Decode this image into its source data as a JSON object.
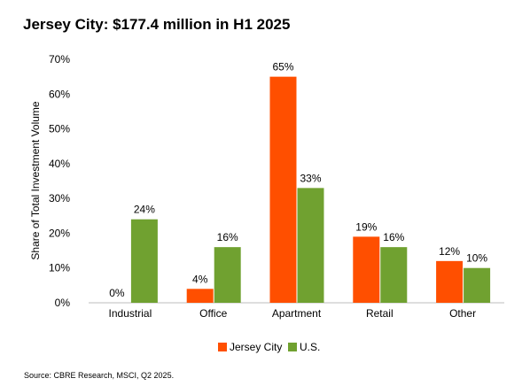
{
  "chart_title": "Jersey City: $177.4 million in H1 2025",
  "source": "Source: CBRE Research, MSCI, Q2 2025.",
  "chart_data": {
    "type": "bar",
    "title": "Jersey City: $177.4 million in H1 2025",
    "xlabel": "",
    "ylabel": "Share of Total Investment Volume",
    "ylim": [
      0,
      70
    ],
    "yticks": [
      0,
      10,
      20,
      30,
      40,
      50,
      60,
      70
    ],
    "ytick_labels": [
      "0%",
      "10%",
      "20%",
      "30%",
      "40%",
      "50%",
      "60%",
      "70%"
    ],
    "categories": [
      "Industrial",
      "Office",
      "Apartment",
      "Retail",
      "Other"
    ],
    "series": [
      {
        "name": "Jersey City",
        "color": "#ff4f00",
        "values": [
          0,
          4,
          65,
          19,
          12
        ],
        "labels": [
          "0%",
          "4%",
          "65%",
          "19%",
          "12%"
        ]
      },
      {
        "name": "U.S.",
        "color": "#70a130",
        "values": [
          24,
          16,
          33,
          16,
          10
        ],
        "labels": [
          "24%",
          "16%",
          "33%",
          "16%",
          "10%"
        ]
      }
    ],
    "grid": false,
    "legend_position": "bottom-center"
  }
}
